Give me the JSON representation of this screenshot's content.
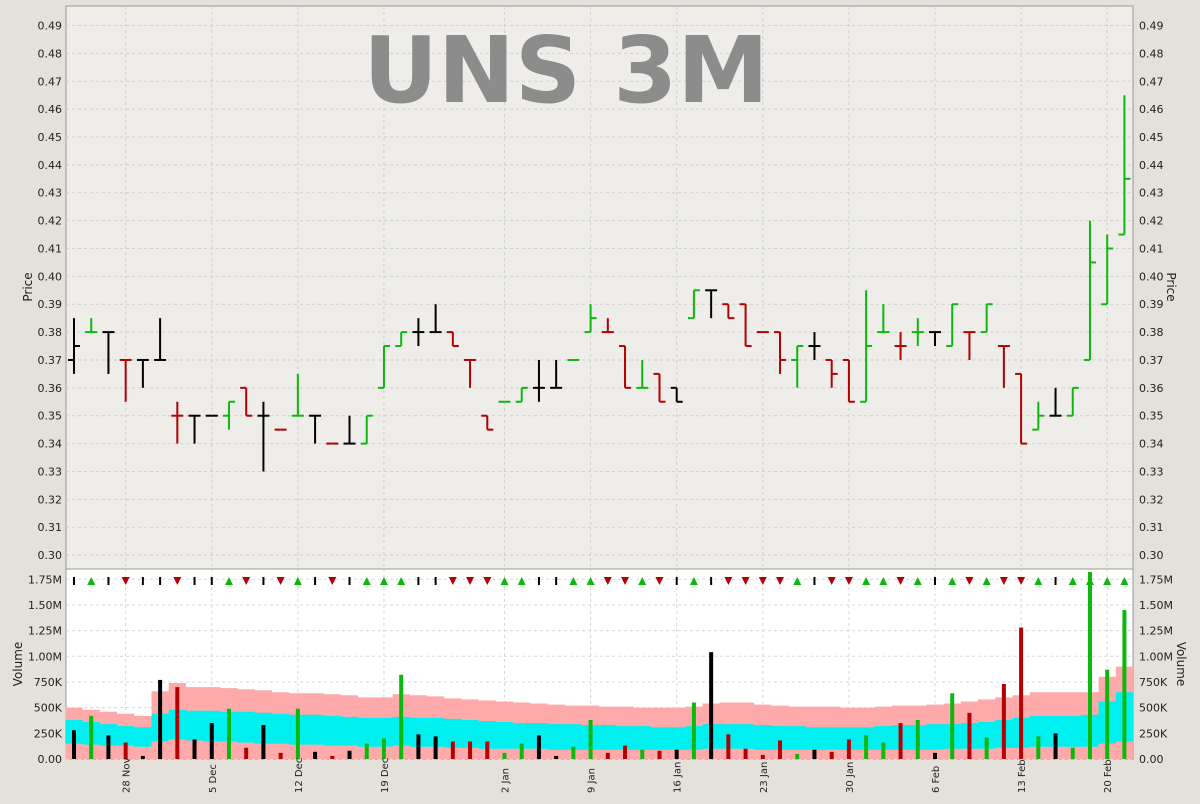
{
  "chart_data": {
    "type": "ohlc_volume",
    "title": "UNS 3M",
    "price_axis_label": "Price",
    "volume_axis_label": "Volume",
    "price_ylim": [
      0.295,
      0.497
    ],
    "price_ticks": [
      "0.30",
      "0.31",
      "0.32",
      "0.33",
      "0.34",
      "0.35",
      "0.36",
      "0.37",
      "0.38",
      "0.39",
      "0.40",
      "0.41",
      "0.42",
      "0.43",
      "0.44",
      "0.45",
      "0.46",
      "0.47",
      "0.48",
      "0.49"
    ],
    "volume_ylim": [
      0,
      1850000
    ],
    "volume_ticks": [
      {
        "v": 0,
        "label": "0.00"
      },
      {
        "v": 250000,
        "label": "250K"
      },
      {
        "v": 500000,
        "label": "500K"
      },
      {
        "v": 750000,
        "label": "750K"
      },
      {
        "v": 1000000,
        "label": "1.00M"
      },
      {
        "v": 1250000,
        "label": "1.25M"
      },
      {
        "v": 1500000,
        "label": "1.50M"
      },
      {
        "v": 1750000,
        "label": "1.75M"
      }
    ],
    "x_ticks": [
      {
        "i": 3,
        "label": "28 Nov"
      },
      {
        "i": 8,
        "label": "5 Dec"
      },
      {
        "i": 13,
        "label": "12 Dec"
      },
      {
        "i": 18,
        "label": "19 Dec"
      },
      {
        "i": 25,
        "label": "2 Jan"
      },
      {
        "i": 30,
        "label": "9 Jan"
      },
      {
        "i": 35,
        "label": "16 Jan"
      },
      {
        "i": 40,
        "label": "23 Jan"
      },
      {
        "i": 45,
        "label": "30 Jan"
      },
      {
        "i": 50,
        "label": "6 Feb"
      },
      {
        "i": 55,
        "label": "13 Feb"
      },
      {
        "i": 60,
        "label": "20 Feb"
      }
    ],
    "grid": true,
    "colors": {
      "up": "#0db80d",
      "down": "#b30000",
      "flat": "#000000",
      "band_outer": "#ffaaaa",
      "band_inner": "#00f0f0",
      "plot_bg": "#efede9"
    },
    "bars": [
      {
        "o": 0.37,
        "h": 0.385,
        "l": 0.365,
        "c": 0.375,
        "v": 280000,
        "d": "flat"
      },
      {
        "o": 0.38,
        "h": 0.385,
        "l": 0.38,
        "c": 0.38,
        "v": 420000,
        "d": "up"
      },
      {
        "o": 0.38,
        "h": 0.38,
        "l": 0.365,
        "c": 0.38,
        "v": 230000,
        "d": "flat"
      },
      {
        "o": 0.37,
        "h": 0.37,
        "l": 0.355,
        "c": 0.37,
        "v": 160000,
        "d": "down"
      },
      {
        "o": 0.37,
        "h": 0.37,
        "l": 0.36,
        "c": 0.37,
        "v": 30000,
        "d": "flat"
      },
      {
        "o": 0.37,
        "h": 0.385,
        "l": 0.37,
        "c": 0.37,
        "v": 770000,
        "d": "flat"
      },
      {
        "o": 0.35,
        "h": 0.355,
        "l": 0.34,
        "c": 0.35,
        "v": 700000,
        "d": "down"
      },
      {
        "o": 0.35,
        "h": 0.35,
        "l": 0.34,
        "c": 0.35,
        "v": 190000,
        "d": "flat"
      },
      {
        "o": 0.35,
        "h": 0.35,
        "l": 0.35,
        "c": 0.35,
        "v": 350000,
        "d": "flat"
      },
      {
        "o": 0.35,
        "h": 0.355,
        "l": 0.345,
        "c": 0.355,
        "v": 490000,
        "d": "up"
      },
      {
        "o": 0.36,
        "h": 0.36,
        "l": 0.35,
        "c": 0.35,
        "v": 110000,
        "d": "down"
      },
      {
        "o": 0.35,
        "h": 0.355,
        "l": 0.33,
        "c": 0.35,
        "v": 330000,
        "d": "flat"
      },
      {
        "o": 0.345,
        "h": 0.345,
        "l": 0.345,
        "c": 0.345,
        "v": 60000,
        "d": "down"
      },
      {
        "o": 0.35,
        "h": 0.365,
        "l": 0.35,
        "c": 0.35,
        "v": 490000,
        "d": "up"
      },
      {
        "o": 0.35,
        "h": 0.35,
        "l": 0.34,
        "c": 0.35,
        "v": 70000,
        "d": "flat"
      },
      {
        "o": 0.34,
        "h": 0.34,
        "l": 0.34,
        "c": 0.34,
        "v": 30000,
        "d": "down"
      },
      {
        "o": 0.34,
        "h": 0.35,
        "l": 0.34,
        "c": 0.34,
        "v": 80000,
        "d": "flat"
      },
      {
        "o": 0.34,
        "h": 0.35,
        "l": 0.34,
        "c": 0.35,
        "v": 150000,
        "d": "up"
      },
      {
        "o": 0.36,
        "h": 0.375,
        "l": 0.36,
        "c": 0.375,
        "v": 200000,
        "d": "up"
      },
      {
        "o": 0.375,
        "h": 0.38,
        "l": 0.375,
        "c": 0.38,
        "v": 820000,
        "d": "up"
      },
      {
        "o": 0.38,
        "h": 0.385,
        "l": 0.375,
        "c": 0.38,
        "v": 240000,
        "d": "flat"
      },
      {
        "o": 0.38,
        "h": 0.39,
        "l": 0.38,
        "c": 0.38,
        "v": 220000,
        "d": "flat"
      },
      {
        "o": 0.38,
        "h": 0.38,
        "l": 0.375,
        "c": 0.375,
        "v": 170000,
        "d": "down"
      },
      {
        "o": 0.37,
        "h": 0.37,
        "l": 0.36,
        "c": 0.37,
        "v": 170000,
        "d": "down"
      },
      {
        "o": 0.35,
        "h": 0.35,
        "l": 0.345,
        "c": 0.345,
        "v": 170000,
        "d": "down"
      },
      {
        "o": 0.355,
        "h": 0.355,
        "l": 0.355,
        "c": 0.355,
        "v": 60000,
        "d": "up"
      },
      {
        "o": 0.355,
        "h": 0.36,
        "l": 0.355,
        "c": 0.36,
        "v": 150000,
        "d": "up"
      },
      {
        "o": 0.36,
        "h": 0.37,
        "l": 0.355,
        "c": 0.36,
        "v": 230000,
        "d": "flat"
      },
      {
        "o": 0.36,
        "h": 0.37,
        "l": 0.36,
        "c": 0.36,
        "v": 30000,
        "d": "flat"
      },
      {
        "o": 0.37,
        "h": 0.37,
        "l": 0.37,
        "c": 0.37,
        "v": 120000,
        "d": "up"
      },
      {
        "o": 0.38,
        "h": 0.39,
        "l": 0.38,
        "c": 0.385,
        "v": 380000,
        "d": "up"
      },
      {
        "o": 0.38,
        "h": 0.385,
        "l": 0.38,
        "c": 0.38,
        "v": 60000,
        "d": "down"
      },
      {
        "o": 0.375,
        "h": 0.375,
        "l": 0.36,
        "c": 0.36,
        "v": 130000,
        "d": "down"
      },
      {
        "o": 0.36,
        "h": 0.37,
        "l": 0.36,
        "c": 0.36,
        "v": 90000,
        "d": "up"
      },
      {
        "o": 0.365,
        "h": 0.365,
        "l": 0.355,
        "c": 0.355,
        "v": 80000,
        "d": "down"
      },
      {
        "o": 0.36,
        "h": 0.36,
        "l": 0.355,
        "c": 0.355,
        "v": 90000,
        "d": "flat"
      },
      {
        "o": 0.385,
        "h": 0.395,
        "l": 0.385,
        "c": 0.395,
        "v": 550000,
        "d": "up"
      },
      {
        "o": 0.395,
        "h": 0.395,
        "l": 0.385,
        "c": 0.395,
        "v": 1040000,
        "d": "flat"
      },
      {
        "o": 0.39,
        "h": 0.39,
        "l": 0.385,
        "c": 0.385,
        "v": 240000,
        "d": "down"
      },
      {
        "o": 0.39,
        "h": 0.39,
        "l": 0.375,
        "c": 0.375,
        "v": 100000,
        "d": "down"
      },
      {
        "o": 0.38,
        "h": 0.38,
        "l": 0.38,
        "c": 0.38,
        "v": 40000,
        "d": "down"
      },
      {
        "o": 0.38,
        "h": 0.38,
        "l": 0.365,
        "c": 0.37,
        "v": 180000,
        "d": "down"
      },
      {
        "o": 0.37,
        "h": 0.375,
        "l": 0.36,
        "c": 0.375,
        "v": 50000,
        "d": "up"
      },
      {
        "o": 0.375,
        "h": 0.38,
        "l": 0.37,
        "c": 0.375,
        "v": 90000,
        "d": "flat"
      },
      {
        "o": 0.37,
        "h": 0.37,
        "l": 0.36,
        "c": 0.365,
        "v": 70000,
        "d": "down"
      },
      {
        "o": 0.37,
        "h": 0.37,
        "l": 0.355,
        "c": 0.355,
        "v": 190000,
        "d": "down"
      },
      {
        "o": 0.355,
        "h": 0.395,
        "l": 0.355,
        "c": 0.375,
        "v": 230000,
        "d": "up"
      },
      {
        "o": 0.38,
        "h": 0.39,
        "l": 0.38,
        "c": 0.38,
        "v": 160000,
        "d": "up"
      },
      {
        "o": 0.375,
        "h": 0.38,
        "l": 0.37,
        "c": 0.375,
        "v": 350000,
        "d": "down"
      },
      {
        "o": 0.38,
        "h": 0.385,
        "l": 0.375,
        "c": 0.38,
        "v": 380000,
        "d": "up"
      },
      {
        "o": 0.38,
        "h": 0.38,
        "l": 0.375,
        "c": 0.38,
        "v": 60000,
        "d": "flat"
      },
      {
        "o": 0.375,
        "h": 0.39,
        "l": 0.375,
        "c": 0.39,
        "v": 640000,
        "d": "up"
      },
      {
        "o": 0.38,
        "h": 0.38,
        "l": 0.37,
        "c": 0.38,
        "v": 450000,
        "d": "down"
      },
      {
        "o": 0.38,
        "h": 0.39,
        "l": 0.38,
        "c": 0.39,
        "v": 210000,
        "d": "up"
      },
      {
        "o": 0.375,
        "h": 0.375,
        "l": 0.36,
        "c": 0.375,
        "v": 730000,
        "d": "down"
      },
      {
        "o": 0.365,
        "h": 0.365,
        "l": 0.34,
        "c": 0.34,
        "v": 1280000,
        "d": "down"
      },
      {
        "o": 0.345,
        "h": 0.355,
        "l": 0.345,
        "c": 0.35,
        "v": 220000,
        "d": "up"
      },
      {
        "o": 0.35,
        "h": 0.36,
        "l": 0.35,
        "c": 0.35,
        "v": 250000,
        "d": "flat"
      },
      {
        "o": 0.35,
        "h": 0.36,
        "l": 0.35,
        "c": 0.36,
        "v": 110000,
        "d": "up"
      },
      {
        "o": 0.37,
        "h": 0.42,
        "l": 0.37,
        "c": 0.405,
        "v": 1820000,
        "d": "up"
      },
      {
        "o": 0.39,
        "h": 0.415,
        "l": 0.39,
        "c": 0.41,
        "v": 870000,
        "d": "up"
      },
      {
        "o": 0.415,
        "h": 0.465,
        "l": 0.415,
        "c": 0.435,
        "v": 1450000,
        "d": "up"
      }
    ],
    "band_outer": [
      500000,
      480000,
      460000,
      440000,
      420000,
      660000,
      740000,
      700000,
      700000,
      690000,
      680000,
      670000,
      650000,
      640000,
      640000,
      630000,
      620000,
      600000,
      600000,
      630000,
      620000,
      610000,
      590000,
      580000,
      570000,
      560000,
      550000,
      540000,
      530000,
      520000,
      520000,
      510000,
      510000,
      500000,
      500000,
      500000,
      510000,
      540000,
      550000,
      550000,
      530000,
      520000,
      510000,
      510000,
      510000,
      500000,
      500000,
      510000,
      520000,
      520000,
      530000,
      540000,
      560000,
      580000,
      600000,
      620000,
      650000,
      650000,
      650000,
      650000,
      800000,
      900000,
      920000
    ],
    "band_inner": [
      380000,
      360000,
      340000,
      320000,
      310000,
      440000,
      480000,
      470000,
      470000,
      460000,
      460000,
      450000,
      440000,
      430000,
      430000,
      420000,
      410000,
      400000,
      400000,
      410000,
      400000,
      400000,
      390000,
      380000,
      370000,
      360000,
      350000,
      350000,
      340000,
      340000,
      330000,
      330000,
      320000,
      320000,
      310000,
      310000,
      320000,
      340000,
      340000,
      340000,
      330000,
      320000,
      320000,
      310000,
      310000,
      310000,
      310000,
      320000,
      330000,
      330000,
      340000,
      340000,
      350000,
      360000,
      380000,
      400000,
      420000,
      420000,
      420000,
      430000,
      560000,
      650000,
      680000
    ],
    "band_base": [
      150000,
      140000,
      130000,
      130000,
      120000,
      170000,
      190000,
      180000,
      170000,
      170000,
      160000,
      150000,
      150000,
      140000,
      140000,
      130000,
      130000,
      120000,
      120000,
      130000,
      120000,
      120000,
      110000,
      110000,
      100000,
      100000,
      100000,
      100000,
      90000,
      90000,
      90000,
      90000,
      90000,
      90000,
      90000,
      90000,
      90000,
      100000,
      100000,
      100000,
      90000,
      90000,
      90000,
      90000,
      90000,
      90000,
      90000,
      90000,
      90000,
      90000,
      90000,
      100000,
      100000,
      100000,
      110000,
      110000,
      120000,
      120000,
      120000,
      120000,
      150000,
      170000,
      180000
    ]
  }
}
